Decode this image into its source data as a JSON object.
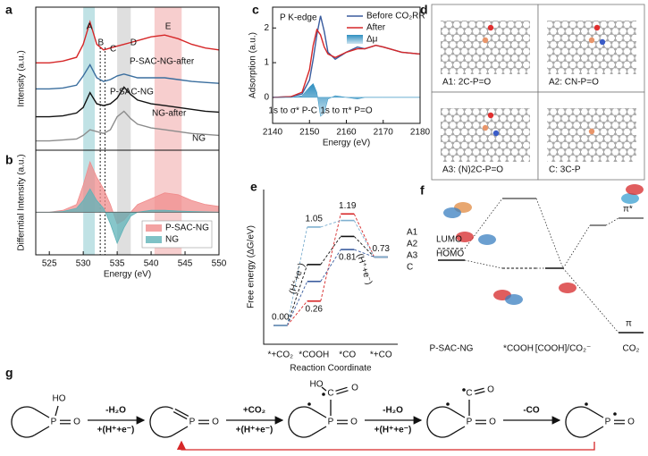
{
  "chart_data": [
    {
      "type": "line",
      "panel": "a",
      "ylabel": "Intensity (a.u.)",
      "x": [
        523,
        525,
        527,
        529,
        530,
        531,
        532,
        533,
        534,
        535,
        536,
        537,
        538,
        540,
        542,
        544,
        546,
        548,
        550
      ],
      "xlim": [
        523,
        550
      ],
      "ylim": [
        1.5,
        9.2
      ],
      "bands": [
        {
          "from": 530,
          "to": 531.7,
          "color": "#b5dde0"
        },
        {
          "from": 535,
          "to": 537,
          "color": "#d9d9d9"
        },
        {
          "from": 540.5,
          "to": 544.5,
          "color": "#f6c6c6"
        }
      ],
      "vlines": [
        532.5,
        533.2
      ],
      "annotations": [
        {
          "text": "A",
          "x": 530.9
        },
        {
          "text": "B",
          "x": 532.6
        },
        {
          "text": "C",
          "x": 534.4
        },
        {
          "text": "D",
          "x": 537.4
        },
        {
          "text": "E",
          "x": 542.5
        }
      ],
      "series": [
        {
          "name": "P-SAC-NG-after",
          "color": "#d62728",
          "values": [
            6.2,
            6.2,
            6.3,
            6.5,
            7.2,
            8.4,
            7.2,
            6.9,
            7.0,
            7.1,
            7.2,
            7.3,
            7.4,
            7.6,
            7.7,
            7.5,
            7.2,
            7.0,
            6.9
          ]
        },
        {
          "name": "P-SAC-NG",
          "color": "#3a6e9e",
          "values": [
            4.8,
            4.8,
            4.85,
            5.0,
            5.5,
            6.1,
            5.4,
            5.2,
            5.3,
            5.5,
            5.6,
            5.5,
            5.4,
            5.4,
            5.4,
            5.3,
            5.2,
            5.15,
            5.1
          ]
        },
        {
          "name": "NG-after",
          "color": "#111111",
          "values": [
            3.3,
            3.3,
            3.35,
            3.5,
            3.8,
            4.6,
            4.0,
            3.9,
            4.0,
            4.3,
            4.9,
            4.5,
            4.2,
            4.0,
            3.9,
            3.8,
            3.7,
            3.6,
            3.55
          ]
        },
        {
          "name": "NG",
          "color": "#8c8c8c",
          "values": [
            2.0,
            2.0,
            2.05,
            2.1,
            2.3,
            2.6,
            2.5,
            2.4,
            2.6,
            3.3,
            3.6,
            3.2,
            2.9,
            2.7,
            2.6,
            2.5,
            2.4,
            2.35,
            2.3
          ]
        }
      ]
    },
    {
      "type": "area",
      "panel": "b",
      "xlabel": "Energy (eV)",
      "ylabel": "Differntial Intensity (a.u.)",
      "x": [
        523,
        525,
        527,
        529,
        530,
        531,
        532,
        533,
        534,
        535,
        536,
        537,
        538,
        540,
        542,
        544,
        546,
        548,
        550
      ],
      "xlim": [
        523,
        550
      ],
      "ylim": [
        -1.1,
        1.6
      ],
      "xticks": [
        525,
        530,
        535,
        540,
        545,
        550
      ],
      "bands": [
        {
          "from": 530,
          "to": 531.7,
          "color": "#b5dde0"
        },
        {
          "from": 535,
          "to": 537,
          "color": "#d9d9d9"
        },
        {
          "from": 540.5,
          "to": 544.5,
          "color": "#f6c6c6"
        }
      ],
      "vlines": [
        532.5,
        533.2
      ],
      "legend": "lower right",
      "series": [
        {
          "name": "P-SAC-NG",
          "color": "#f08c8c",
          "values": [
            0,
            0,
            0.05,
            0.2,
            0.7,
            1.3,
            0.9,
            0.6,
            0.2,
            -0.3,
            -0.2,
            0,
            0.2,
            0.35,
            0.5,
            0.45,
            0.3,
            0.2,
            0.15
          ]
        },
        {
          "name": "NG",
          "color": "#5fb3b8",
          "values": [
            0,
            0,
            0.02,
            0.1,
            0.3,
            0.6,
            0.3,
            0.1,
            -0.3,
            -0.8,
            -0.4,
            -0.1,
            0,
            0.05,
            0.05,
            0.03,
            0.02,
            0.01,
            0
          ]
        }
      ]
    },
    {
      "type": "line",
      "panel": "c",
      "title": "P K-edge",
      "xlabel": "Energy (eV)",
      "ylabel": "Adsorption (a.u.)",
      "x": [
        2140,
        2145,
        2148,
        2150,
        2151,
        2152,
        2153,
        2154,
        2155,
        2157,
        2160,
        2163,
        2165,
        2168,
        2170,
        2175,
        2180
      ],
      "xlim": [
        2140,
        2180
      ],
      "ylim": [
        -0.75,
        2.6
      ],
      "xticks": [
        2140,
        2150,
        2160,
        2170,
        2180
      ],
      "yticks": [
        0,
        1,
        2
      ],
      "legend": "upper right",
      "annotations": [
        {
          "text": "1s to σ* P-C",
          "x": 2145.5
        },
        {
          "text": "1s to π* P=O",
          "x": 2160
        }
      ],
      "series": [
        {
          "name": "Before CO₂RR",
          "color": "#3a5c9e",
          "values": [
            0,
            0.02,
            0.1,
            0.5,
            1.1,
            1.8,
            2.35,
            1.9,
            1.3,
            1.1,
            1.3,
            1.45,
            1.4,
            1.5,
            1.45,
            1.3,
            1.25
          ]
        },
        {
          "name": "After",
          "color": "#d62728",
          "values": [
            0,
            0.02,
            0.15,
            0.8,
            1.5,
            1.95,
            1.8,
            1.45,
            1.25,
            1.15,
            1.3,
            1.4,
            1.4,
            1.5,
            1.45,
            1.3,
            1.25
          ]
        },
        {
          "name": "Δμ",
          "color": "#2f8fc0",
          "fill": true,
          "values": [
            0,
            0,
            0.05,
            0.3,
            0.4,
            0.15,
            -0.55,
            -0.45,
            -0.05,
            0.05,
            0,
            -0.05,
            0,
            0,
            0,
            0,
            0
          ]
        }
      ]
    },
    {
      "type": "energy",
      "panel": "e",
      "xlabel": "Reaction Coordinate",
      "ylabel": "Free energy (ΔG/eV)",
      "categories": [
        "*+CO₂",
        "*COOH",
        "*CO",
        "*+CO"
      ],
      "ylim": [
        -0.2,
        1.45
      ],
      "legend": "right",
      "annotations": [
        "(H⁺+e⁻)",
        "(H⁺+e⁻)"
      ],
      "series": [
        {
          "name": "A1",
          "color": "#111111",
          "values": [
            0,
            0.65,
            0.95,
            0.73
          ],
          "value_labels": [
            "0.00",
            null,
            null,
            "0.73"
          ]
        },
        {
          "name": "A2",
          "color": "#d62728",
          "values": [
            0,
            0.26,
            1.19,
            0.73
          ],
          "value_labels": [
            null,
            "0.26",
            "1.19",
            null
          ]
        },
        {
          "name": "A3",
          "color": "#3a5c9e",
          "values": [
            0,
            0.47,
            0.81,
            0.73
          ],
          "value_labels": [
            null,
            null,
            "0.81",
            null
          ]
        },
        {
          "name": "C",
          "color": "#7fb0d0",
          "values": [
            0,
            1.05,
            1.12,
            0.73
          ],
          "value_labels": [
            null,
            "1.05",
            null,
            null
          ]
        }
      ]
    }
  ],
  "structures": {
    "panel": "d",
    "labels": [
      "A1: 2C-P=O",
      "A2: CN-P=O",
      "A3: (N)2C-P=O",
      "C: 3C-P"
    ]
  },
  "orbitals": {
    "panel": "f",
    "levels": [
      "LUMO",
      "HOMO"
    ],
    "co2_levels": [
      "π*",
      "π"
    ],
    "columns": [
      "P-SAC-NG",
      "*COOH",
      "[COOH]/CO₂⁻",
      "CO₂"
    ]
  },
  "scheme": {
    "panel": "g",
    "steps": [
      {
        "top": "-H₂O",
        "bottom": "+(H⁺+e⁻)"
      },
      {
        "top": "+CO₂",
        "bottom": "+(H⁺+e⁻)"
      },
      {
        "top": "-H₂O",
        "bottom": "+(H⁺+e⁻)"
      },
      {
        "top": "-CO"
      }
    ],
    "molecules": [
      [
        "HO",
        "P",
        "O"
      ],
      [
        "P",
        "O"
      ],
      [
        "HO",
        "C",
        "O",
        "P",
        "O"
      ],
      [
        "C",
        "O",
        "P",
        "O"
      ],
      [
        "P",
        "O"
      ]
    ]
  }
}
